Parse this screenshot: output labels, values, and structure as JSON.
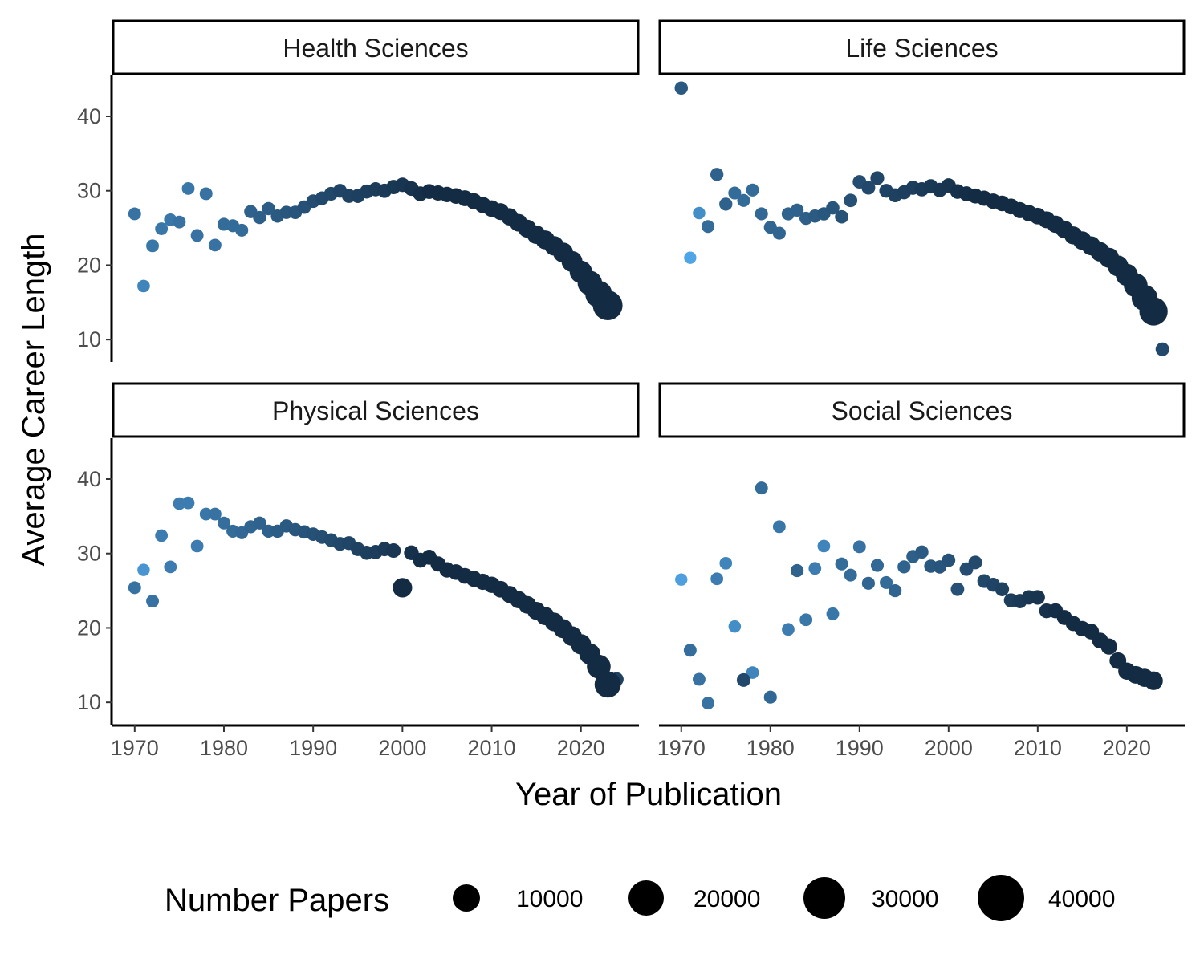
{
  "chart_data": {
    "type": "scatter",
    "xlabel": "Year of Publication",
    "ylabel": "Average Career Length",
    "xlim": [
      1967.5,
      2026.5
    ],
    "ylim": [
      7,
      45.5
    ],
    "x_ticks": [
      1970,
      1980,
      1990,
      2000,
      2010,
      2020
    ],
    "y_ticks": [
      10,
      20,
      30,
      40
    ],
    "grid": false,
    "legend": {
      "title": "Number Papers",
      "position": "bottom",
      "entries": [
        10000,
        20000,
        30000,
        40000
      ]
    },
    "color_scale": {
      "low": "#132B43",
      "high": "#56B1F7",
      "mapped_to": "Number Papers (log)"
    },
    "panels": [
      {
        "name": "Health Sciences",
        "points": [
          [
            1970,
            26.9,
            60
          ],
          [
            1971,
            17.2,
            30
          ],
          [
            1972,
            22.6,
            50
          ],
          [
            1973,
            24.9,
            50
          ],
          [
            1974,
            26.1,
            50
          ],
          [
            1975,
            25.8,
            60
          ],
          [
            1976,
            30.3,
            50
          ],
          [
            1977,
            24.0,
            60
          ],
          [
            1978,
            29.6,
            60
          ],
          [
            1979,
            22.7,
            60
          ],
          [
            1980,
            25.5,
            80
          ],
          [
            1981,
            25.3,
            80
          ],
          [
            1982,
            24.7,
            80
          ],
          [
            1983,
            27.2,
            120
          ],
          [
            1984,
            26.4,
            130
          ],
          [
            1985,
            27.6,
            140
          ],
          [
            1986,
            26.6,
            160
          ],
          [
            1987,
            27.1,
            180
          ],
          [
            1988,
            27.1,
            200
          ],
          [
            1989,
            27.8,
            230
          ],
          [
            1990,
            28.6,
            260
          ],
          [
            1991,
            29.0,
            300
          ],
          [
            1992,
            29.6,
            330
          ],
          [
            1993,
            30.0,
            370
          ],
          [
            1994,
            29.3,
            400
          ],
          [
            1995,
            29.3,
            430
          ],
          [
            1996,
            29.9,
            470
          ],
          [
            1997,
            30.2,
            510
          ],
          [
            1998,
            30.0,
            550
          ],
          [
            1999,
            30.5,
            600
          ],
          [
            2000,
            30.8,
            650
          ],
          [
            2001,
            30.3,
            750
          ],
          [
            2002,
            29.6,
            850
          ],
          [
            2003,
            29.9,
            950
          ],
          [
            2004,
            29.7,
            1100
          ],
          [
            2005,
            29.5,
            1250
          ],
          [
            2006,
            29.3,
            1400
          ],
          [
            2007,
            29.0,
            1600
          ],
          [
            2008,
            28.6,
            1800
          ],
          [
            2009,
            28.1,
            2000
          ],
          [
            2010,
            27.6,
            2300
          ],
          [
            2011,
            27.2,
            2600
          ],
          [
            2012,
            26.5,
            3000
          ],
          [
            2013,
            25.7,
            3500
          ],
          [
            2014,
            24.9,
            4000
          ],
          [
            2015,
            24.1,
            4600
          ],
          [
            2016,
            23.4,
            5300
          ],
          [
            2017,
            22.6,
            6000
          ],
          [
            2018,
            21.7,
            7000
          ],
          [
            2019,
            20.5,
            8500
          ],
          [
            2020,
            19.1,
            12000
          ],
          [
            2021,
            17.6,
            17000
          ],
          [
            2022,
            16.1,
            24000
          ],
          [
            2023,
            14.6,
            34000
          ]
        ]
      },
      {
        "name": "Life Sciences",
        "points": [
          [
            1970,
            43.8,
            160
          ],
          [
            1971,
            21.0,
            8
          ],
          [
            1972,
            27.0,
            20
          ],
          [
            1973,
            25.2,
            80
          ],
          [
            1974,
            32.2,
            120
          ],
          [
            1975,
            28.2,
            120
          ],
          [
            1976,
            29.7,
            80
          ],
          [
            1977,
            28.7,
            80
          ],
          [
            1978,
            30.1,
            80
          ],
          [
            1979,
            26.9,
            90
          ],
          [
            1980,
            25.1,
            100
          ],
          [
            1981,
            24.3,
            100
          ],
          [
            1982,
            26.9,
            110
          ],
          [
            1983,
            27.4,
            120
          ],
          [
            1984,
            26.3,
            130
          ],
          [
            1985,
            26.6,
            150
          ],
          [
            1986,
            26.9,
            170
          ],
          [
            1987,
            27.7,
            190
          ],
          [
            1988,
            26.5,
            210
          ],
          [
            1989,
            28.7,
            230
          ],
          [
            1990,
            31.2,
            260
          ],
          [
            1991,
            30.4,
            300
          ],
          [
            1992,
            31.7,
            340
          ],
          [
            1993,
            30.0,
            380
          ],
          [
            1994,
            29.4,
            420
          ],
          [
            1995,
            29.8,
            460
          ],
          [
            1996,
            30.4,
            500
          ],
          [
            1997,
            30.2,
            550
          ],
          [
            1998,
            30.6,
            600
          ],
          [
            1999,
            30.1,
            650
          ],
          [
            2000,
            30.7,
            700
          ],
          [
            2001,
            29.9,
            800
          ],
          [
            2002,
            29.6,
            900
          ],
          [
            2003,
            29.3,
            1000
          ],
          [
            2004,
            29.0,
            1100
          ],
          [
            2005,
            28.6,
            1250
          ],
          [
            2006,
            28.3,
            1400
          ],
          [
            2007,
            27.9,
            1600
          ],
          [
            2008,
            27.4,
            1800
          ],
          [
            2009,
            27.0,
            2000
          ],
          [
            2010,
            26.6,
            2300
          ],
          [
            2011,
            26.1,
            2600
          ],
          [
            2012,
            25.5,
            3000
          ],
          [
            2013,
            24.8,
            3500
          ],
          [
            2014,
            24.0,
            4000
          ],
          [
            2015,
            23.3,
            4600
          ],
          [
            2016,
            22.6,
            5300
          ],
          [
            2017,
            21.8,
            6000
          ],
          [
            2018,
            21.0,
            7000
          ],
          [
            2019,
            19.9,
            8500
          ],
          [
            2020,
            18.7,
            11000
          ],
          [
            2021,
            17.3,
            15000
          ],
          [
            2022,
            15.6,
            21000
          ],
          [
            2023,
            13.8,
            29000
          ],
          [
            2024,
            8.7,
            300
          ]
        ]
      },
      {
        "name": "Physical Sciences",
        "points": [
          [
            1970,
            25.4,
            60
          ],
          [
            1971,
            27.8,
            15
          ],
          [
            1972,
            23.6,
            60
          ],
          [
            1973,
            32.4,
            40
          ],
          [
            1974,
            28.2,
            40
          ],
          [
            1975,
            36.7,
            40
          ],
          [
            1976,
            36.8,
            40
          ],
          [
            1977,
            31.0,
            40
          ],
          [
            1978,
            35.3,
            50
          ],
          [
            1979,
            35.3,
            60
          ],
          [
            1980,
            34.1,
            70
          ],
          [
            1981,
            33.0,
            80
          ],
          [
            1982,
            32.8,
            90
          ],
          [
            1983,
            33.6,
            100
          ],
          [
            1984,
            34.1,
            110
          ],
          [
            1985,
            33.0,
            120
          ],
          [
            1986,
            33.0,
            140
          ],
          [
            1987,
            33.7,
            160
          ],
          [
            1988,
            33.2,
            180
          ],
          [
            1989,
            32.9,
            200
          ],
          [
            1990,
            32.6,
            220
          ],
          [
            1991,
            32.2,
            250
          ],
          [
            1992,
            31.8,
            280
          ],
          [
            1993,
            31.3,
            320
          ],
          [
            1994,
            31.4,
            360
          ],
          [
            1995,
            30.6,
            400
          ],
          [
            1996,
            30.1,
            450
          ],
          [
            1997,
            30.2,
            500
          ],
          [
            1998,
            30.6,
            560
          ],
          [
            1999,
            30.4,
            620
          ],
          [
            2000,
            25.4,
            6000
          ],
          [
            2001,
            30.1,
            800
          ],
          [
            2002,
            29.1,
            900
          ],
          [
            2003,
            29.5,
            1000
          ],
          [
            2004,
            28.6,
            1100
          ],
          [
            2005,
            27.8,
            1250
          ],
          [
            2006,
            27.5,
            1400
          ],
          [
            2007,
            27.0,
            1550
          ],
          [
            2008,
            26.6,
            1700
          ],
          [
            2009,
            26.2,
            1900
          ],
          [
            2010,
            25.8,
            2100
          ],
          [
            2011,
            25.2,
            2400
          ],
          [
            2012,
            24.5,
            2700
          ],
          [
            2013,
            23.8,
            3000
          ],
          [
            2014,
            23.1,
            3400
          ],
          [
            2015,
            22.3,
            3800
          ],
          [
            2016,
            21.6,
            4300
          ],
          [
            2017,
            20.8,
            4800
          ],
          [
            2018,
            19.9,
            5500
          ],
          [
            2019,
            18.9,
            6300
          ],
          [
            2020,
            17.8,
            7500
          ],
          [
            2021,
            16.5,
            9000
          ],
          [
            2022,
            14.8,
            15000
          ],
          [
            2023,
            12.4,
            22000
          ],
          [
            2024,
            13.1,
            400
          ]
        ]
      },
      {
        "name": "Social Sciences",
        "points": [
          [
            1970,
            26.5,
            10
          ],
          [
            1971,
            17.0,
            70
          ],
          [
            1972,
            13.1,
            60
          ],
          [
            1973,
            9.9,
            60
          ],
          [
            1974,
            26.6,
            40
          ],
          [
            1975,
            28.7,
            30
          ],
          [
            1976,
            20.2,
            20
          ],
          [
            1977,
            13.0,
            300
          ],
          [
            1978,
            14.0,
            30
          ],
          [
            1979,
            38.8,
            80
          ],
          [
            1980,
            10.7,
            90
          ],
          [
            1981,
            33.6,
            50
          ],
          [
            1982,
            19.8,
            40
          ],
          [
            1983,
            27.7,
            110
          ],
          [
            1984,
            21.1,
            50
          ],
          [
            1985,
            28.0,
            40
          ],
          [
            1986,
            31.0,
            30
          ],
          [
            1987,
            21.9,
            50
          ],
          [
            1988,
            28.6,
            80
          ],
          [
            1989,
            27.1,
            80
          ],
          [
            1990,
            30.9,
            60
          ],
          [
            1991,
            26.0,
            100
          ],
          [
            1992,
            28.4,
            90
          ],
          [
            1993,
            26.1,
            80
          ],
          [
            1994,
            25.0,
            100
          ],
          [
            1995,
            28.2,
            110
          ],
          [
            1996,
            29.6,
            130
          ],
          [
            1997,
            30.2,
            150
          ],
          [
            1998,
            28.3,
            170
          ],
          [
            1999,
            28.2,
            190
          ],
          [
            2000,
            29.1,
            210
          ],
          [
            2001,
            25.2,
            230
          ],
          [
            2002,
            27.9,
            260
          ],
          [
            2003,
            28.8,
            290
          ],
          [
            2004,
            26.3,
            330
          ],
          [
            2005,
            25.8,
            370
          ],
          [
            2006,
            25.2,
            420
          ],
          [
            2007,
            23.7,
            480
          ],
          [
            2008,
            23.6,
            550
          ],
          [
            2009,
            24.1,
            620
          ],
          [
            2010,
            24.1,
            700
          ],
          [
            2011,
            22.3,
            800
          ],
          [
            2012,
            22.3,
            900
          ],
          [
            2013,
            21.4,
            1000
          ],
          [
            2014,
            20.6,
            1150
          ],
          [
            2015,
            19.9,
            1300
          ],
          [
            2016,
            19.5,
            1500
          ],
          [
            2017,
            18.3,
            1700
          ],
          [
            2018,
            17.5,
            2000
          ],
          [
            2019,
            15.6,
            2400
          ],
          [
            2020,
            14.2,
            2900
          ],
          [
            2021,
            13.7,
            3500
          ],
          [
            2022,
            13.3,
            4200
          ],
          [
            2023,
            12.9,
            4800
          ]
        ]
      }
    ]
  }
}
